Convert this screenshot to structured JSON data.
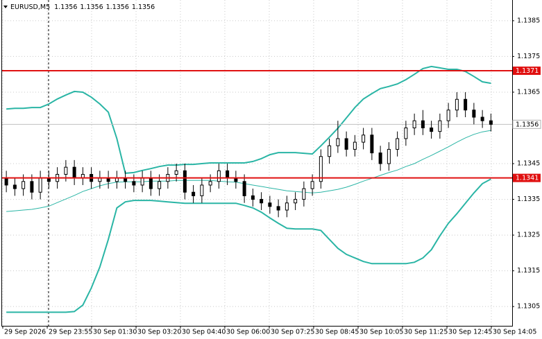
{
  "chart_data": {
    "type": "candlestick",
    "title": "EURUSD,M5",
    "header_values": [
      1.1356,
      1.1356,
      1.1356,
      1.1356
    ],
    "xlim": [
      0,
      60
    ],
    "ylim": [
      1.12996,
      1.13908
    ],
    "yticks": [
      1.1385,
      1.1375,
      1.1365,
      1.1345,
      1.1335,
      1.1325,
      1.1315,
      1.1305
    ],
    "xticks": [
      {
        "value": 0.08,
        "label": "29 Sep 2026"
      },
      {
        "value": 5.31,
        "label": "29 Sep 23:55"
      },
      {
        "value": 10.53,
        "label": "30 Sep 01:30"
      },
      {
        "value": 15.76,
        "label": "30 Sep 03:20"
      },
      {
        "value": 20.98,
        "label": "30 Sep 04:40"
      },
      {
        "value": 26.2,
        "label": "30 Sep 06:00"
      },
      {
        "value": 31.43,
        "label": "30 Sep 07:25"
      },
      {
        "value": 36.65,
        "label": "30 Sep 08:45"
      },
      {
        "value": 41.88,
        "label": "30 Sep 10:05"
      },
      {
        "value": 47.1,
        "label": "30 Sep 11:25"
      },
      {
        "value": 52.33,
        "label": "30 Sep 12:45"
      },
      {
        "value": 57.55,
        "label": "30 Sep 14:05"
      }
    ],
    "grid": true,
    "bull_color": "#ffffff",
    "bear_color": "#000000",
    "wick_color": "#000000",
    "candles": {
      "open": [
        1.1341,
        1.1339,
        1.1338,
        1.134,
        1.1337,
        1.1341,
        1.134,
        1.1342,
        1.1344,
        1.1341,
        1.1342,
        1.134,
        1.1341,
        1.134,
        1.1341,
        1.134,
        1.1339,
        1.1341,
        1.1338,
        1.134,
        1.1342,
        1.1343,
        1.1337,
        1.1336,
        1.1339,
        1.134,
        1.1343,
        1.1341,
        1.134,
        1.1336,
        1.1335,
        1.1334,
        1.1333,
        1.1332,
        1.1334,
        1.1335,
        1.1338,
        1.134,
        1.1347,
        1.135,
        1.1352,
        1.1349,
        1.1351,
        1.1353,
        1.1348,
        1.1345,
        1.1349,
        1.1352,
        1.1355,
        1.1357,
        1.1355,
        1.1354,
        1.1357,
        1.136,
        1.1363,
        1.136,
        1.1358,
        1.1357
      ],
      "high": [
        1.1343,
        1.1341,
        1.1342,
        1.1342,
        1.1343,
        1.1343,
        1.1344,
        1.1346,
        1.1346,
        1.1344,
        1.1344,
        1.1343,
        1.1343,
        1.1343,
        1.1343,
        1.1342,
        1.1343,
        1.1343,
        1.1342,
        1.1344,
        1.1345,
        1.1345,
        1.1339,
        1.1341,
        1.1342,
        1.1345,
        1.1345,
        1.1343,
        1.1342,
        1.1338,
        1.1337,
        1.1336,
        1.1335,
        1.1336,
        1.1337,
        1.134,
        1.1342,
        1.1349,
        1.1352,
        1.1357,
        1.1354,
        1.1353,
        1.1355,
        1.1355,
        1.135,
        1.1351,
        1.1354,
        1.1357,
        1.1359,
        1.136,
        1.1357,
        1.1359,
        1.1362,
        1.1365,
        1.1365,
        1.1362,
        1.136,
        1.1359
      ],
      "low": [
        1.1337,
        1.1336,
        1.1336,
        1.1335,
        1.1335,
        1.1338,
        1.1338,
        1.134,
        1.1339,
        1.1339,
        1.1338,
        1.1338,
        1.1338,
        1.1338,
        1.1338,
        1.1337,
        1.1337,
        1.1336,
        1.1336,
        1.1338,
        1.134,
        1.1335,
        1.1334,
        1.1334,
        1.1337,
        1.1338,
        1.1339,
        1.1338,
        1.1334,
        1.1333,
        1.1332,
        1.1331,
        1.133,
        1.133,
        1.1332,
        1.1333,
        1.1336,
        1.1338,
        1.1345,
        1.1348,
        1.1347,
        1.1347,
        1.1349,
        1.1346,
        1.1343,
        1.1343,
        1.1347,
        1.135,
        1.1353,
        1.1353,
        1.1352,
        1.1352,
        1.1355,
        1.1358,
        1.1358,
        1.1356,
        1.1355,
        1.1354
      ],
      "close": [
        1.1339,
        1.1338,
        1.134,
        1.1337,
        1.1341,
        1.134,
        1.1342,
        1.1344,
        1.1341,
        1.1342,
        1.134,
        1.1341,
        1.134,
        1.1341,
        1.134,
        1.1339,
        1.1341,
        1.1338,
        1.134,
        1.1342,
        1.1343,
        1.1337,
        1.1336,
        1.1339,
        1.134,
        1.1343,
        1.1341,
        1.134,
        1.1336,
        1.1335,
        1.1334,
        1.1333,
        1.1332,
        1.1334,
        1.1335,
        1.1338,
        1.134,
        1.1347,
        1.135,
        1.1352,
        1.1349,
        1.1351,
        1.1353,
        1.1348,
        1.1345,
        1.1349,
        1.1352,
        1.1355,
        1.1357,
        1.1355,
        1.1354,
        1.1357,
        1.136,
        1.1363,
        1.136,
        1.1358,
        1.1357,
        1.1356
      ]
    },
    "indicator_lines": [
      {
        "color": "#2ab5a5",
        "width": 2,
        "values": [
          1.13603,
          1.13605,
          1.13605,
          1.13607,
          1.13607,
          1.13617,
          1.13631,
          1.13642,
          1.13652,
          1.1365,
          1.13636,
          1.13617,
          1.13594,
          1.1352,
          1.13423,
          1.13425,
          1.13431,
          1.13436,
          1.13442,
          1.13446,
          1.13446,
          1.13448,
          1.13448,
          1.1345,
          1.13452,
          1.13452,
          1.13452,
          1.13452,
          1.13452,
          1.13456,
          1.13464,
          1.13475,
          1.13481,
          1.13481,
          1.13481,
          1.13479,
          1.13477,
          1.135,
          1.13524,
          1.13549,
          1.13578,
          1.13607,
          1.13631,
          1.13646,
          1.1366,
          1.13666,
          1.13673,
          1.13685,
          1.137,
          1.13716,
          1.13722,
          1.13718,
          1.13714,
          1.13714,
          1.13708,
          1.13694,
          1.13679,
          1.13675
        ]
      },
      {
        "color": "#2ab5a5",
        "width": 1,
        "values": [
          1.13316,
          1.13318,
          1.1332,
          1.13322,
          1.13326,
          1.13331,
          1.13341,
          1.13351,
          1.13361,
          1.13372,
          1.1338,
          1.13388,
          1.13394,
          1.13398,
          1.13399,
          1.13399,
          1.13399,
          1.13401,
          1.13401,
          1.13401,
          1.13403,
          1.13403,
          1.13403,
          1.13403,
          1.13403,
          1.13401,
          1.13399,
          1.13398,
          1.13394,
          1.1339,
          1.13386,
          1.13382,
          1.13378,
          1.13374,
          1.13372,
          1.1337,
          1.13368,
          1.1337,
          1.13374,
          1.13378,
          1.13384,
          1.13392,
          1.13401,
          1.13409,
          1.13417,
          1.13425,
          1.13432,
          1.13442,
          1.1345,
          1.13462,
          1.13473,
          1.13485,
          1.13497,
          1.1351,
          1.13522,
          1.13532,
          1.13539,
          1.13543
        ]
      },
      {
        "color": "#2ab5a5",
        "width": 2,
        "values": [
          1.13034,
          1.13034,
          1.13034,
          1.13034,
          1.13034,
          1.13034,
          1.13034,
          1.13034,
          1.13036,
          1.13054,
          1.13102,
          1.13161,
          1.13238,
          1.13326,
          1.13343,
          1.13347,
          1.13347,
          1.13347,
          1.13345,
          1.13343,
          1.13341,
          1.13339,
          1.13339,
          1.13339,
          1.13339,
          1.13339,
          1.13339,
          1.13339,
          1.13333,
          1.13326,
          1.13314,
          1.13298,
          1.13283,
          1.13269,
          1.13267,
          1.13267,
          1.13267,
          1.13263,
          1.13238,
          1.13213,
          1.13196,
          1.13186,
          1.13176,
          1.1317,
          1.1317,
          1.1317,
          1.1317,
          1.1317,
          1.13174,
          1.13186,
          1.13209,
          1.13248,
          1.13283,
          1.1331,
          1.13339,
          1.13368,
          1.13394,
          1.13407
        ]
      }
    ],
    "hlines": [
      {
        "value": 1.1371,
        "color": "#e01010"
      },
      {
        "value": 1.1341,
        "color": "#e01010"
      }
    ],
    "price_line": {
      "value": 1.1356,
      "color": "#c0c0c0"
    }
  }
}
